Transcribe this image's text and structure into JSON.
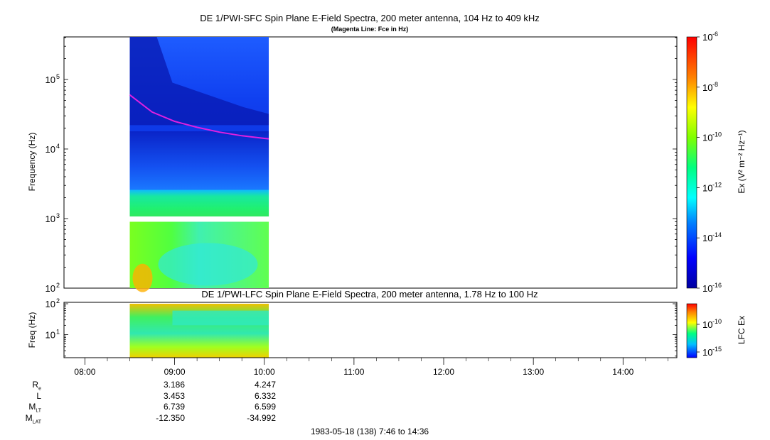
{
  "chart_data": [
    {
      "type": "heatmap",
      "title": "DE 1/PWI-SFC  Spin Plane E-Field Spectra, 200 meter antenna, 104 Hz to 409 kHz",
      "subtitle": "(Magenta Line: Fce in Hz)",
      "ylabel": "Frequency (Hz)",
      "y_scale": "log",
      "ylim": [
        100,
        409000
      ],
      "y_ticks": [
        {
          "value": 100,
          "label": "10",
          "exp": "2"
        },
        {
          "value": 1000,
          "label": "10",
          "exp": "3"
        },
        {
          "value": 10000,
          "label": "10",
          "exp": "4"
        },
        {
          "value": 100000,
          "label": "10",
          "exp": "5"
        }
      ],
      "xlim": [
        "07:46",
        "14:36"
      ],
      "data_time_range": [
        "08:30",
        "10:03"
      ],
      "colorbar": {
        "label": "Ex (V² m⁻² Hz⁻¹)",
        "scale": "log",
        "range": [
          1e-16,
          1e-06
        ],
        "ticks": [
          {
            "value": 1e-06,
            "label": "10",
            "exp": "-6"
          },
          {
            "value": 1e-08,
            "label": "10",
            "exp": "-8"
          },
          {
            "value": 1e-10,
            "label": "10",
            "exp": "-10"
          },
          {
            "value": 1e-12,
            "label": "10",
            "exp": "-12"
          },
          {
            "value": 1e-14,
            "label": "10",
            "exp": "-14"
          },
          {
            "value": 1e-16,
            "label": "10",
            "exp": "-16"
          }
        ]
      },
      "fce_line": {
        "color": "#e020e0",
        "points": [
          {
            "t": "08:30",
            "f": 60000
          },
          {
            "t": "08:45",
            "f": 34000
          },
          {
            "t": "09:00",
            "f": 25000
          },
          {
            "t": "09:15",
            "f": 20500
          },
          {
            "t": "09:30",
            "f": 17500
          },
          {
            "t": "09:45",
            "f": 15500
          },
          {
            "t": "10:00",
            "f": 14200
          },
          {
            "t": "10:03",
            "f": 14000
          }
        ]
      }
    },
    {
      "type": "heatmap",
      "title": "DE 1/PWI-LFC  Spin Plane E-Field Spectra, 200 meter antenna, 1.78 Hz to 100 Hz",
      "ylabel": "Freq (Hz)",
      "y_scale": "log",
      "ylim": [
        1.78,
        100
      ],
      "y_ticks": [
        {
          "value": 10,
          "label": "10",
          "exp": "1"
        },
        {
          "value": 100,
          "label": "10",
          "exp": "2"
        }
      ],
      "data_time_range": [
        "08:30",
        "10:03"
      ],
      "colorbar": {
        "label": "LFC Ex",
        "scale": "log",
        "ticks": [
          {
            "value": 1e-10,
            "label": "10",
            "exp": "-10"
          },
          {
            "value": 1e-15,
            "label": "10",
            "exp": "-15"
          }
        ]
      }
    }
  ],
  "x_axis": {
    "ticks": [
      "08:00",
      "09:00",
      "10:00",
      "11:00",
      "12:00",
      "13:00",
      "14:00"
    ]
  },
  "ephemeris": {
    "rows": [
      {
        "label": "R",
        "sub": "e",
        "values": [
          "3.186",
          "4.247"
        ]
      },
      {
        "label": "L",
        "sub": "",
        "values": [
          "3.453",
          "6.332"
        ]
      },
      {
        "label": "M",
        "sub": "LT",
        "values": [
          "6.739",
          "6.599"
        ]
      },
      {
        "label": "M",
        "sub": "LAT",
        "values": [
          "-12.350",
          "-34.992"
        ]
      }
    ]
  },
  "footer": "1983-05-18 (138) 7:46 to 14:36"
}
